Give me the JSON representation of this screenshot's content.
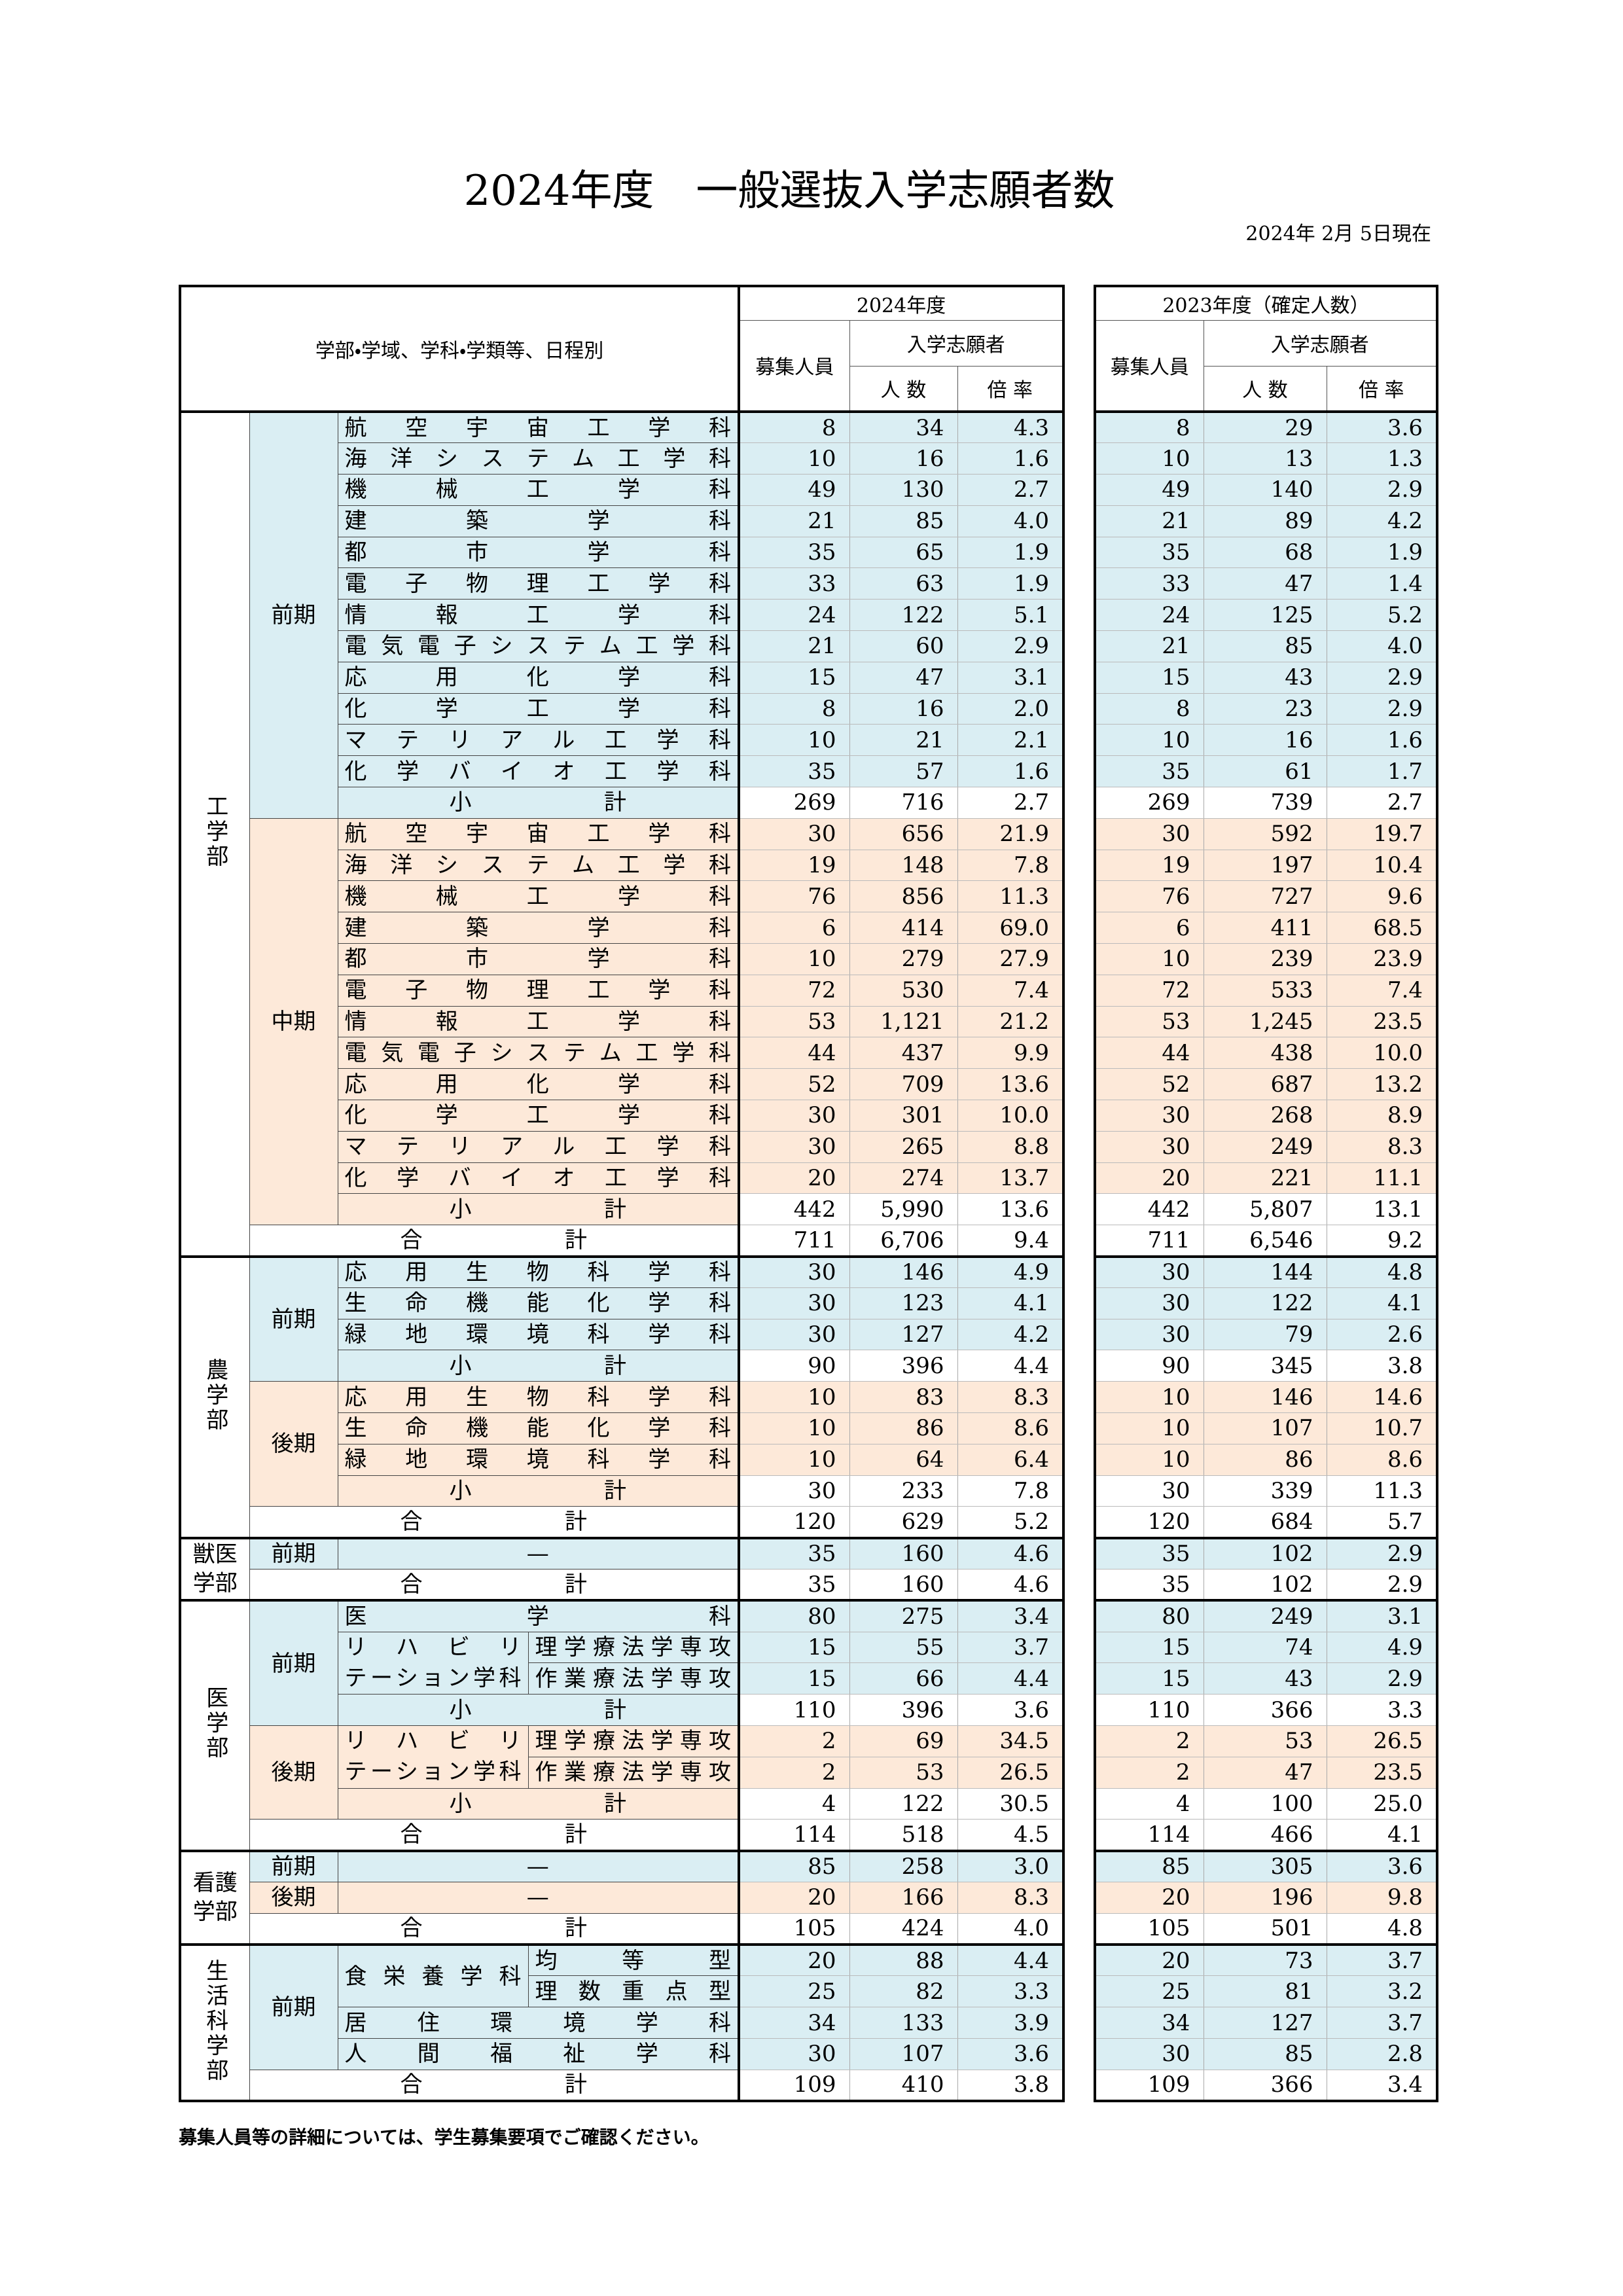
{
  "header": {
    "title": "2024年度　一般選抜入学志願者数",
    "date": "2024年 2月 5日現在"
  },
  "table": {
    "label": "学部・学域、学科・学類等、日程別",
    "cur_head": {
      "year": "2024年度",
      "capacity": "募集人員",
      "applicants": "入学志願者",
      "count": "人 数",
      "ratio": "倍 率"
    },
    "prev_head": {
      "year": "2023年度（確定人数）",
      "capacity": "募集人員",
      "applicants": "入学志願者",
      "count": "人 数",
      "ratio": "倍 率"
    },
    "faculties": [
      {
        "name": "工学部",
        "groups": [
          {
            "term": "前期",
            "color": "#daeef3",
            "rows": [
              {
                "name": "航空宇宙工学科",
                "cur": [
                  "8",
                  "34",
                  "4.3"
                ],
                "prev": [
                  "8",
                  "29",
                  "3.6"
                ]
              },
              {
                "name": "海洋システム工学科",
                "cur": [
                  "10",
                  "16",
                  "1.6"
                ],
                "prev": [
                  "10",
                  "13",
                  "1.3"
                ]
              },
              {
                "name": "機械工学科",
                "cur": [
                  "49",
                  "130",
                  "2.7"
                ],
                "prev": [
                  "49",
                  "140",
                  "2.9"
                ]
              },
              {
                "name": "建築学科",
                "cur": [
                  "21",
                  "85",
                  "4.0"
                ],
                "prev": [
                  "21",
                  "89",
                  "4.2"
                ]
              },
              {
                "name": "都市学科",
                "cur": [
                  "35",
                  "65",
                  "1.9"
                ],
                "prev": [
                  "35",
                  "68",
                  "1.9"
                ]
              },
              {
                "name": "電子物理工学科",
                "cur": [
                  "33",
                  "63",
                  "1.9"
                ],
                "prev": [
                  "33",
                  "47",
                  "1.4"
                ]
              },
              {
                "name": "情報工学科",
                "cur": [
                  "24",
                  "122",
                  "5.1"
                ],
                "prev": [
                  "24",
                  "125",
                  "5.2"
                ]
              },
              {
                "name": "電気電子システム工学科",
                "cur": [
                  "21",
                  "60",
                  "2.9"
                ],
                "prev": [
                  "21",
                  "85",
                  "4.0"
                ]
              },
              {
                "name": "応用化学科",
                "cur": [
                  "15",
                  "47",
                  "3.1"
                ],
                "prev": [
                  "15",
                  "43",
                  "2.9"
                ]
              },
              {
                "name": "化学工学科",
                "cur": [
                  "8",
                  "16",
                  "2.0"
                ],
                "prev": [
                  "8",
                  "23",
                  "2.9"
                ]
              },
              {
                "name": "マテリアル工学科",
                "cur": [
                  "10",
                  "21",
                  "2.1"
                ],
                "prev": [
                  "10",
                  "16",
                  "1.6"
                ]
              },
              {
                "name": "化学バイオ工学科",
                "cur": [
                  "35",
                  "57",
                  "1.6"
                ],
                "prev": [
                  "35",
                  "61",
                  "1.7"
                ]
              }
            ],
            "subtotal": {
              "name": "小計",
              "cur": [
                "269",
                "716",
                "2.7"
              ],
              "prev": [
                "269",
                "739",
                "2.7"
              ]
            }
          },
          {
            "term": "中期",
            "color": "#fde9d9",
            "rows": [
              {
                "name": "航空宇宙工学科",
                "cur": [
                  "30",
                  "656",
                  "21.9"
                ],
                "prev": [
                  "30",
                  "592",
                  "19.7"
                ]
              },
              {
                "name": "海洋システム工学科",
                "cur": [
                  "19",
                  "148",
                  "7.8"
                ],
                "prev": [
                  "19",
                  "197",
                  "10.4"
                ]
              },
              {
                "name": "機械工学科",
                "cur": [
                  "76",
                  "856",
                  "11.3"
                ],
                "prev": [
                  "76",
                  "727",
                  "9.6"
                ]
              },
              {
                "name": "建築学科",
                "cur": [
                  "6",
                  "414",
                  "69.0"
                ],
                "prev": [
                  "6",
                  "411",
                  "68.5"
                ]
              },
              {
                "name": "都市学科",
                "cur": [
                  "10",
                  "279",
                  "27.9"
                ],
                "prev": [
                  "10",
                  "239",
                  "23.9"
                ]
              },
              {
                "name": "電子物理工学科",
                "cur": [
                  "72",
                  "530",
                  "7.4"
                ],
                "prev": [
                  "72",
                  "533",
                  "7.4"
                ]
              },
              {
                "name": "情報工学科",
                "cur": [
                  "53",
                  "1,121",
                  "21.2"
                ],
                "prev": [
                  "53",
                  "1,245",
                  "23.5"
                ]
              },
              {
                "name": "電気電子システム工学科",
                "cur": [
                  "44",
                  "437",
                  "9.9"
                ],
                "prev": [
                  "44",
                  "438",
                  "10.0"
                ]
              },
              {
                "name": "応用化学科",
                "cur": [
                  "52",
                  "709",
                  "13.6"
                ],
                "prev": [
                  "52",
                  "687",
                  "13.2"
                ]
              },
              {
                "name": "化学工学科",
                "cur": [
                  "30",
                  "301",
                  "10.0"
                ],
                "prev": [
                  "30",
                  "268",
                  "8.9"
                ]
              },
              {
                "name": "マテリアル工学科",
                "cur": [
                  "30",
                  "265",
                  "8.8"
                ],
                "prev": [
                  "30",
                  "249",
                  "8.3"
                ]
              },
              {
                "name": "化学バイオ工学科",
                "cur": [
                  "20",
                  "274",
                  "13.7"
                ],
                "prev": [
                  "20",
                  "221",
                  "11.1"
                ]
              }
            ],
            "subtotal": {
              "name": "小計",
              "cur": [
                "442",
                "5,990",
                "13.6"
              ],
              "prev": [
                "442",
                "5,807",
                "13.1"
              ]
            }
          }
        ],
        "total": {
          "name": "合計",
          "cur": [
            "711",
            "6,706",
            "9.4"
          ],
          "prev": [
            "711",
            "6,546",
            "9.2"
          ]
        }
      },
      {
        "name": "農学部",
        "groups": [
          {
            "term": "前期",
            "color": "#daeef3",
            "rows": [
              {
                "name": "応用生物科学科",
                "cur": [
                  "30",
                  "146",
                  "4.9"
                ],
                "prev": [
                  "30",
                  "144",
                  "4.8"
                ]
              },
              {
                "name": "生命機能化学科",
                "cur": [
                  "30",
                  "123",
                  "4.1"
                ],
                "prev": [
                  "30",
                  "122",
                  "4.1"
                ]
              },
              {
                "name": "緑地環境科学科",
                "cur": [
                  "30",
                  "127",
                  "4.2"
                ],
                "prev": [
                  "30",
                  "79",
                  "2.6"
                ]
              }
            ],
            "subtotal": {
              "name": "小計",
              "cur": [
                "90",
                "396",
                "4.4"
              ],
              "prev": [
                "90",
                "345",
                "3.8"
              ]
            }
          },
          {
            "term": "後期",
            "color": "#fde9d9",
            "rows": [
              {
                "name": "応用生物科学科",
                "cur": [
                  "10",
                  "83",
                  "8.3"
                ],
                "prev": [
                  "10",
                  "146",
                  "14.6"
                ]
              },
              {
                "name": "生命機能化学科",
                "cur": [
                  "10",
                  "86",
                  "8.6"
                ],
                "prev": [
                  "10",
                  "107",
                  "10.7"
                ]
              },
              {
                "name": "緑地環境科学科",
                "cur": [
                  "10",
                  "64",
                  "6.4"
                ],
                "prev": [
                  "10",
                  "86",
                  "8.6"
                ]
              }
            ],
            "subtotal": {
              "name": "小計",
              "cur": [
                "30",
                "233",
                "7.8"
              ],
              "prev": [
                "30",
                "339",
                "11.3"
              ]
            }
          }
        ],
        "total": {
          "name": "合計",
          "cur": [
            "120",
            "629",
            "5.2"
          ],
          "prev": [
            "120",
            "684",
            "5.7"
          ]
        }
      },
      {
        "name": "獣医学部",
        "groups": [
          {
            "term": "前期",
            "color": "#daeef3",
            "rows": [
              {
                "name": "—",
                "cur": [
                  "35",
                  "160",
                  "4.6"
                ],
                "prev": [
                  "35",
                  "102",
                  "2.9"
                ]
              }
            ]
          }
        ],
        "total": {
          "name": "合計",
          "cur": [
            "35",
            "160",
            "4.6"
          ],
          "prev": [
            "35",
            "102",
            "2.9"
          ]
        }
      },
      {
        "name": "医学部",
        "groups": [
          {
            "term": "前期",
            "color": "#daeef3",
            "rows": [
              {
                "name": "医学科",
                "cur": [
                  "80",
                  "275",
                  "3.4"
                ],
                "prev": [
                  "80",
                  "249",
                  "3.1"
                ]
              },
              {
                "name": "リハビリテーション学科",
                "subs": [
                  {
                    "name": "理学療法学専攻",
                    "cur": [
                      "15",
                      "55",
                      "3.7"
                    ],
                    "prev": [
                      "15",
                      "74",
                      "4.9"
                    ]
                  },
                  {
                    "name": "作業療法学専攻",
                    "cur": [
                      "15",
                      "66",
                      "4.4"
                    ],
                    "prev": [
                      "15",
                      "43",
                      "2.9"
                    ]
                  }
                ]
              }
            ],
            "subtotal": {
              "name": "小計",
              "cur": [
                "110",
                "396",
                "3.6"
              ],
              "prev": [
                "110",
                "366",
                "3.3"
              ]
            }
          },
          {
            "term": "後期",
            "color": "#fde9d9",
            "rows": [
              {
                "name": "リハビリテーション学科",
                "subs": [
                  {
                    "name": "理学療法学専攻",
                    "cur": [
                      "2",
                      "69",
                      "34.5"
                    ],
                    "prev": [
                      "2",
                      "53",
                      "26.5"
                    ]
                  },
                  {
                    "name": "作業療法学専攻",
                    "cur": [
                      "2",
                      "53",
                      "26.5"
                    ],
                    "prev": [
                      "2",
                      "47",
                      "23.5"
                    ]
                  }
                ]
              }
            ],
            "subtotal": {
              "name": "小計",
              "cur": [
                "4",
                "122",
                "30.5"
              ],
              "prev": [
                "4",
                "100",
                "25.0"
              ]
            }
          }
        ],
        "total": {
          "name": "合計",
          "cur": [
            "114",
            "518",
            "4.5"
          ],
          "prev": [
            "114",
            "466",
            "4.1"
          ]
        }
      },
      {
        "name": "看護学部",
        "groups": [
          {
            "term": "前期",
            "color": "#daeef3",
            "rows": [
              {
                "name": "—",
                "cur": [
                  "85",
                  "258",
                  "3.0"
                ],
                "prev": [
                  "85",
                  "305",
                  "3.6"
                ]
              }
            ]
          },
          {
            "term": "後期",
            "color": "#fde9d9",
            "rows": [
              {
                "name": "—",
                "cur": [
                  "20",
                  "166",
                  "8.3"
                ],
                "prev": [
                  "20",
                  "196",
                  "9.8"
                ]
              }
            ]
          }
        ],
        "total": {
          "name": "合計",
          "cur": [
            "105",
            "424",
            "4.0"
          ],
          "prev": [
            "105",
            "501",
            "4.8"
          ]
        }
      },
      {
        "name": "生活科学部",
        "groups": [
          {
            "term": "前期",
            "color": "#daeef3",
            "rows": [
              {
                "name": "食栄養学科",
                "subs": [
                  {
                    "name": "均等型",
                    "cur": [
                      "20",
                      "88",
                      "4.4"
                    ],
                    "prev": [
                      "20",
                      "73",
                      "3.7"
                    ]
                  },
                  {
                    "name": "理数重点型",
                    "cur": [
                      "25",
                      "82",
                      "3.3"
                    ],
                    "prev": [
                      "25",
                      "81",
                      "3.2"
                    ]
                  }
                ]
              },
              {
                "name": "居住環境学科",
                "cur": [
                  "34",
                  "133",
                  "3.9"
                ],
                "prev": [
                  "34",
                  "127",
                  "3.7"
                ]
              },
              {
                "name": "人間福祉学科",
                "cur": [
                  "30",
                  "107",
                  "3.6"
                ],
                "prev": [
                  "30",
                  "85",
                  "2.8"
                ]
              }
            ]
          }
        ],
        "total": {
          "name": "合計",
          "cur": [
            "109",
            "410",
            "3.8"
          ],
          "prev": [
            "109",
            "366",
            "3.4"
          ]
        }
      }
    ]
  },
  "note": "募集人員等の詳細については、学生募集要項でご確認ください。"
}
